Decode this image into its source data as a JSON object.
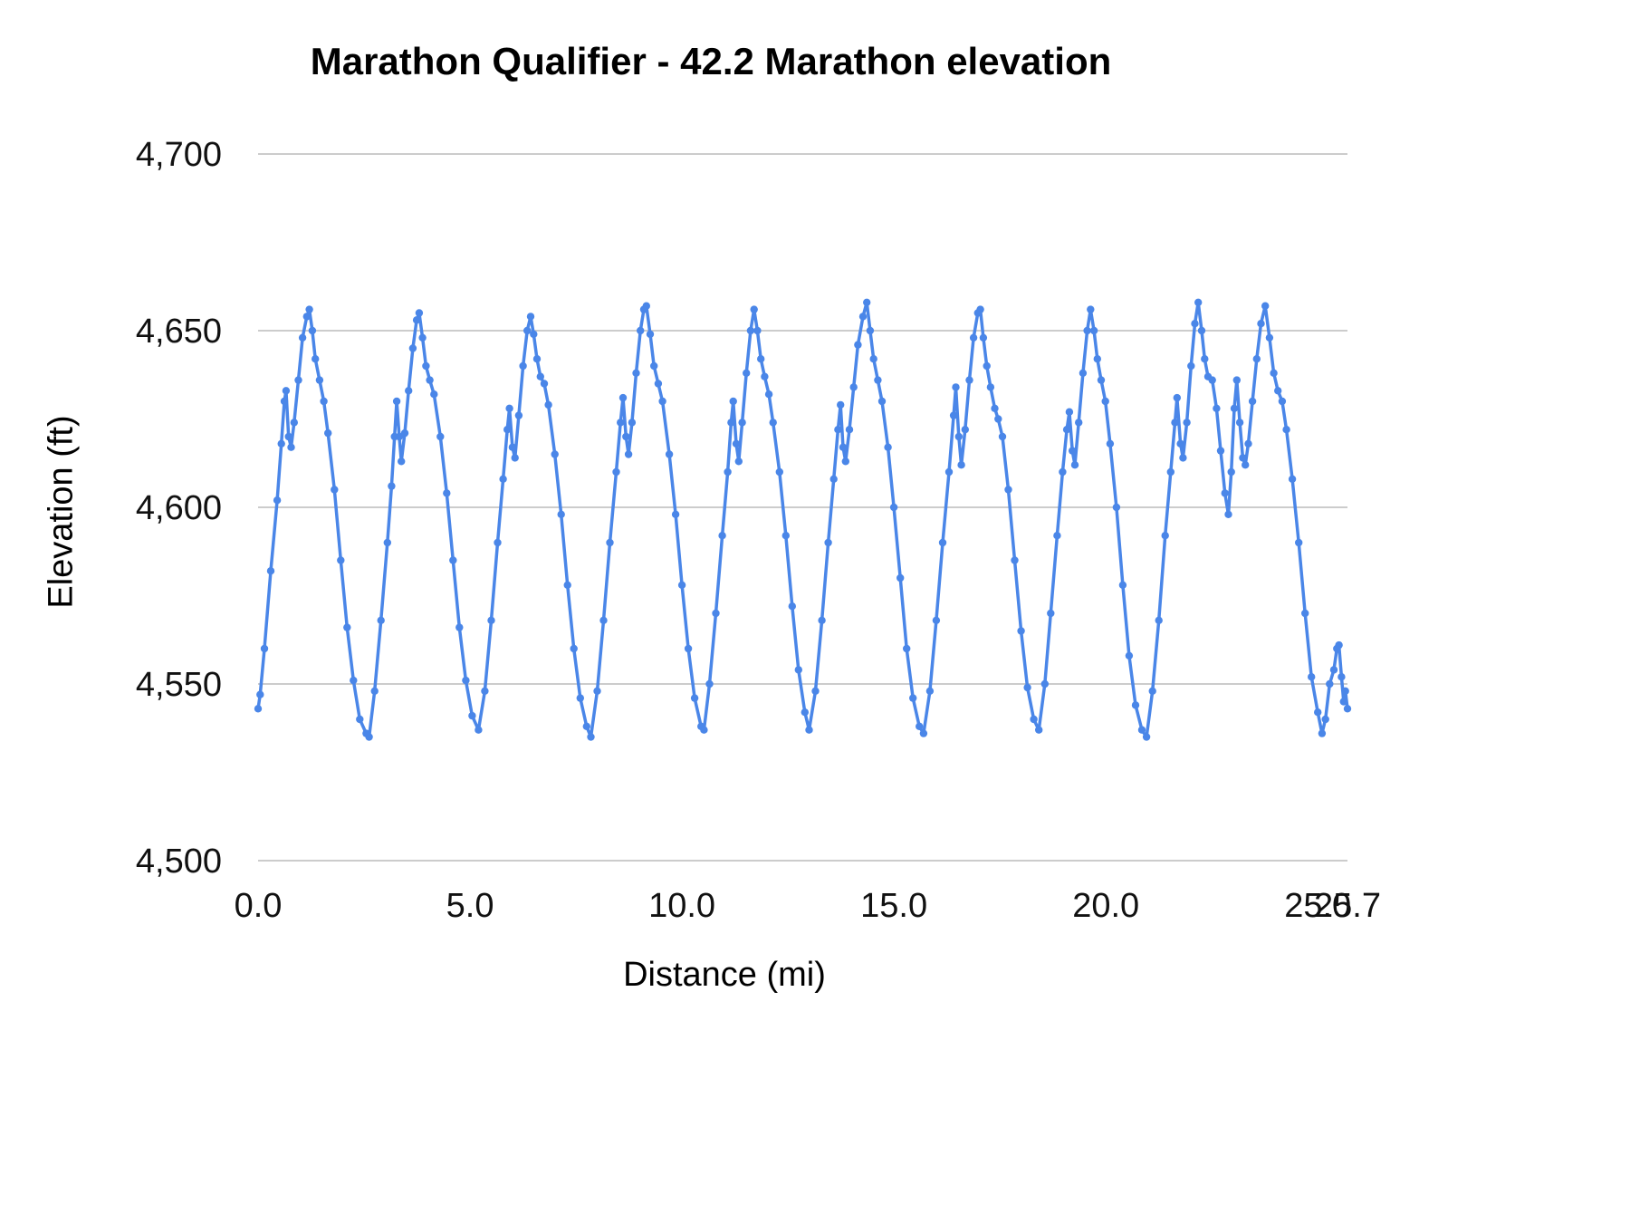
{
  "chart_data": {
    "type": "line",
    "title": "Marathon Qualifier - 42.2 Marathon elevation",
    "xlabel": "Distance (mi)",
    "ylabel": "Elevation (ft)",
    "xlim": [
      0,
      25.7
    ],
    "ylim": [
      4500,
      4700
    ],
    "grid": "horizontal",
    "legend": "none",
    "line_color": "#4a86e8",
    "marker": true,
    "yticks": [
      {
        "value": 4500,
        "label": "4,500"
      },
      {
        "value": 4550,
        "label": "4,550"
      },
      {
        "value": 4600,
        "label": "4,600"
      },
      {
        "value": 4650,
        "label": "4,650"
      },
      {
        "value": 4700,
        "label": "4,700"
      }
    ],
    "xticks": [
      {
        "value": 0,
        "label": "0.0"
      },
      {
        "value": 5,
        "label": "5.0"
      },
      {
        "value": 10,
        "label": "10.0"
      },
      {
        "value": 15,
        "label": "15.0"
      },
      {
        "value": 20,
        "label": "20.0"
      },
      {
        "value": 25,
        "label": "25.0"
      },
      {
        "value": 25.7,
        "label": "25.7"
      }
    ],
    "points": [
      [
        0.0,
        4543
      ],
      [
        0.05,
        4547
      ],
      [
        0.15,
        4560
      ],
      [
        0.3,
        4582
      ],
      [
        0.45,
        4602
      ],
      [
        0.55,
        4618
      ],
      [
        0.62,
        4630
      ],
      [
        0.66,
        4633
      ],
      [
        0.72,
        4620
      ],
      [
        0.78,
        4617
      ],
      [
        0.85,
        4624
      ],
      [
        0.95,
        4636
      ],
      [
        1.05,
        4648
      ],
      [
        1.15,
        4654
      ],
      [
        1.21,
        4656
      ],
      [
        1.28,
        4650
      ],
      [
        1.35,
        4642
      ],
      [
        1.45,
        4636
      ],
      [
        1.55,
        4630
      ],
      [
        1.65,
        4621
      ],
      [
        1.8,
        4605
      ],
      [
        1.95,
        4585
      ],
      [
        2.1,
        4566
      ],
      [
        2.25,
        4551
      ],
      [
        2.4,
        4540
      ],
      [
        2.55,
        4536
      ],
      [
        2.62,
        4535
      ],
      [
        2.75,
        4548
      ],
      [
        2.9,
        4568
      ],
      [
        3.05,
        4590
      ],
      [
        3.15,
        4606
      ],
      [
        3.22,
        4620
      ],
      [
        3.27,
        4630
      ],
      [
        3.33,
        4620
      ],
      [
        3.38,
        4613
      ],
      [
        3.46,
        4621
      ],
      [
        3.55,
        4633
      ],
      [
        3.65,
        4645
      ],
      [
        3.74,
        4653
      ],
      [
        3.8,
        4655
      ],
      [
        3.88,
        4648
      ],
      [
        3.96,
        4640
      ],
      [
        4.05,
        4636
      ],
      [
        4.15,
        4632
      ],
      [
        4.3,
        4620
      ],
      [
        4.45,
        4604
      ],
      [
        4.6,
        4585
      ],
      [
        4.75,
        4566
      ],
      [
        4.9,
        4551
      ],
      [
        5.05,
        4541
      ],
      [
        5.2,
        4537
      ],
      [
        5.35,
        4548
      ],
      [
        5.5,
        4568
      ],
      [
        5.65,
        4590
      ],
      [
        5.78,
        4608
      ],
      [
        5.88,
        4622
      ],
      [
        5.93,
        4628
      ],
      [
        6.0,
        4617
      ],
      [
        6.06,
        4614
      ],
      [
        6.15,
        4626
      ],
      [
        6.25,
        4640
      ],
      [
        6.35,
        4650
      ],
      [
        6.43,
        4654
      ],
      [
        6.5,
        4649
      ],
      [
        6.58,
        4642
      ],
      [
        6.66,
        4637
      ],
      [
        6.75,
        4635
      ],
      [
        6.85,
        4629
      ],
      [
        7.0,
        4615
      ],
      [
        7.15,
        4598
      ],
      [
        7.3,
        4578
      ],
      [
        7.45,
        4560
      ],
      [
        7.6,
        4546
      ],
      [
        7.75,
        4538
      ],
      [
        7.85,
        4535
      ],
      [
        8.0,
        4548
      ],
      [
        8.15,
        4568
      ],
      [
        8.3,
        4590
      ],
      [
        8.45,
        4610
      ],
      [
        8.55,
        4624
      ],
      [
        8.61,
        4631
      ],
      [
        8.68,
        4620
      ],
      [
        8.74,
        4615
      ],
      [
        8.82,
        4624
      ],
      [
        8.92,
        4638
      ],
      [
        9.02,
        4650
      ],
      [
        9.1,
        4656
      ],
      [
        9.16,
        4657
      ],
      [
        9.25,
        4649
      ],
      [
        9.34,
        4640
      ],
      [
        9.44,
        4635
      ],
      [
        9.54,
        4630
      ],
      [
        9.7,
        4615
      ],
      [
        9.85,
        4598
      ],
      [
        10.0,
        4578
      ],
      [
        10.15,
        4560
      ],
      [
        10.3,
        4546
      ],
      [
        10.45,
        4538
      ],
      [
        10.52,
        4537
      ],
      [
        10.65,
        4550
      ],
      [
        10.8,
        4570
      ],
      [
        10.95,
        4592
      ],
      [
        11.08,
        4610
      ],
      [
        11.16,
        4624
      ],
      [
        11.21,
        4630
      ],
      [
        11.28,
        4618
      ],
      [
        11.34,
        4613
      ],
      [
        11.42,
        4624
      ],
      [
        11.52,
        4638
      ],
      [
        11.62,
        4650
      ],
      [
        11.7,
        4656
      ],
      [
        11.78,
        4650
      ],
      [
        11.86,
        4642
      ],
      [
        11.95,
        4637
      ],
      [
        12.05,
        4632
      ],
      [
        12.15,
        4624
      ],
      [
        12.3,
        4610
      ],
      [
        12.45,
        4592
      ],
      [
        12.6,
        4572
      ],
      [
        12.75,
        4554
      ],
      [
        12.9,
        4542
      ],
      [
        13.0,
        4537
      ],
      [
        13.15,
        4548
      ],
      [
        13.3,
        4568
      ],
      [
        13.45,
        4590
      ],
      [
        13.58,
        4608
      ],
      [
        13.68,
        4622
      ],
      [
        13.74,
        4629
      ],
      [
        13.8,
        4617
      ],
      [
        13.86,
        4613
      ],
      [
        13.95,
        4622
      ],
      [
        14.05,
        4634
      ],
      [
        14.15,
        4646
      ],
      [
        14.27,
        4654
      ],
      [
        14.36,
        4658
      ],
      [
        14.44,
        4650
      ],
      [
        14.52,
        4642
      ],
      [
        14.62,
        4636
      ],
      [
        14.72,
        4630
      ],
      [
        14.86,
        4617
      ],
      [
        15.0,
        4600
      ],
      [
        15.15,
        4580
      ],
      [
        15.3,
        4560
      ],
      [
        15.45,
        4546
      ],
      [
        15.6,
        4538
      ],
      [
        15.7,
        4536
      ],
      [
        15.85,
        4548
      ],
      [
        16.0,
        4568
      ],
      [
        16.15,
        4590
      ],
      [
        16.3,
        4610
      ],
      [
        16.41,
        4626
      ],
      [
        16.46,
        4634
      ],
      [
        16.53,
        4620
      ],
      [
        16.59,
        4612
      ],
      [
        16.68,
        4622
      ],
      [
        16.78,
        4636
      ],
      [
        16.88,
        4648
      ],
      [
        16.98,
        4655
      ],
      [
        17.04,
        4656
      ],
      [
        17.11,
        4648
      ],
      [
        17.19,
        4640
      ],
      [
        17.28,
        4634
      ],
      [
        17.38,
        4628
      ],
      [
        17.46,
        4625
      ],
      [
        17.56,
        4620
      ],
      [
        17.7,
        4605
      ],
      [
        17.85,
        4585
      ],
      [
        18.0,
        4565
      ],
      [
        18.15,
        4549
      ],
      [
        18.3,
        4540
      ],
      [
        18.42,
        4537
      ],
      [
        18.56,
        4550
      ],
      [
        18.7,
        4570
      ],
      [
        18.85,
        4592
      ],
      [
        18.98,
        4610
      ],
      [
        19.08,
        4622
      ],
      [
        19.14,
        4627
      ],
      [
        19.21,
        4616
      ],
      [
        19.27,
        4612
      ],
      [
        19.36,
        4624
      ],
      [
        19.46,
        4638
      ],
      [
        19.56,
        4650
      ],
      [
        19.64,
        4656
      ],
      [
        19.72,
        4650
      ],
      [
        19.8,
        4642
      ],
      [
        19.89,
        4636
      ],
      [
        19.99,
        4630
      ],
      [
        20.1,
        4618
      ],
      [
        20.25,
        4600
      ],
      [
        20.4,
        4578
      ],
      [
        20.55,
        4558
      ],
      [
        20.7,
        4544
      ],
      [
        20.85,
        4537
      ],
      [
        20.96,
        4535
      ],
      [
        21.1,
        4548
      ],
      [
        21.25,
        4568
      ],
      [
        21.4,
        4592
      ],
      [
        21.53,
        4610
      ],
      [
        21.63,
        4624
      ],
      [
        21.68,
        4631
      ],
      [
        21.76,
        4618
      ],
      [
        21.82,
        4614
      ],
      [
        21.91,
        4624
      ],
      [
        22.01,
        4640
      ],
      [
        22.1,
        4652
      ],
      [
        22.18,
        4658
      ],
      [
        22.26,
        4650
      ],
      [
        22.33,
        4642
      ],
      [
        22.41,
        4637
      ],
      [
        22.51,
        4636
      ],
      [
        22.61,
        4628
      ],
      [
        22.71,
        4616
      ],
      [
        22.81,
        4604
      ],
      [
        22.89,
        4598
      ],
      [
        22.96,
        4610
      ],
      [
        23.03,
        4628
      ],
      [
        23.09,
        4636
      ],
      [
        23.16,
        4624
      ],
      [
        23.23,
        4614
      ],
      [
        23.29,
        4612
      ],
      [
        23.36,
        4618
      ],
      [
        23.46,
        4630
      ],
      [
        23.56,
        4642
      ],
      [
        23.66,
        4652
      ],
      [
        23.76,
        4657
      ],
      [
        23.86,
        4648
      ],
      [
        23.96,
        4638
      ],
      [
        24.06,
        4633
      ],
      [
        24.16,
        4630
      ],
      [
        24.26,
        4622
      ],
      [
        24.4,
        4608
      ],
      [
        24.55,
        4590
      ],
      [
        24.7,
        4570
      ],
      [
        24.85,
        4552
      ],
      [
        25.0,
        4542
      ],
      [
        25.1,
        4536
      ],
      [
        25.18,
        4540
      ],
      [
        25.28,
        4550
      ],
      [
        25.38,
        4554
      ],
      [
        25.45,
        4560
      ],
      [
        25.5,
        4561
      ],
      [
        25.56,
        4552
      ],
      [
        25.61,
        4545
      ],
      [
        25.65,
        4548
      ],
      [
        25.7,
        4543
      ]
    ]
  }
}
